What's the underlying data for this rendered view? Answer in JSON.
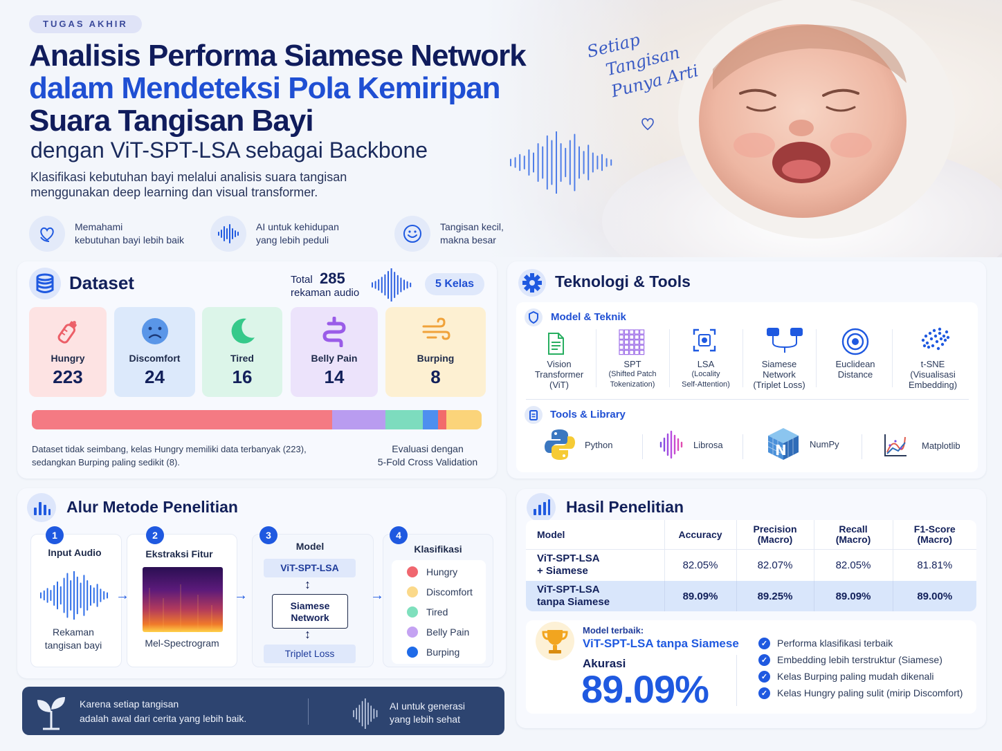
{
  "header": {
    "tag": "TUGAS AKHIR",
    "title_line1": "Analisis Performa Siamese Network",
    "title_line2": "dalam Mendeteksi Pola Kemiripan",
    "title_line3": "Suara Tangisan Bayi",
    "title_line4": "dengan ViT-SPT-LSA sebagai Backbone",
    "subtitle_line1": "Klasifikasi kebutuhan bayi melalui analisis suara tangisan",
    "subtitle_line2": "menggunakan deep learning dan visual transformer.",
    "handwritten_line1": "Setiap",
    "handwritten_line2": "Tangisan",
    "handwritten_line3": "Punya Arti"
  },
  "features": [
    {
      "icon": "heart-hand-icon",
      "line1": "Memahami",
      "line2": "kebutuhan bayi lebih baik"
    },
    {
      "icon": "soundwave-icon",
      "line1": "AI untuk kehidupan",
      "line2": "yang lebih peduli"
    },
    {
      "icon": "smile-icon",
      "line1": "Tangisan kecil,",
      "line2": "makna besar"
    }
  ],
  "dataset": {
    "title": "Dataset",
    "total_label": "Total",
    "total_value": "285",
    "total_unit": "rekaman audio",
    "classes_badge": "5 Kelas",
    "classes": [
      {
        "name": "Hungry",
        "value": "223",
        "count": 223,
        "bg": "#fde3e3",
        "color": "#f0727a",
        "icon": "bottle-icon"
      },
      {
        "name": "Discomfort",
        "value": "24",
        "count": 24,
        "bg": "#dce9fb",
        "color": "#5a96e8",
        "icon": "sad-face-icon"
      },
      {
        "name": "Tired",
        "value": "16",
        "count": 16,
        "bg": "#dcf5e9",
        "color": "#3ccf8e",
        "icon": "moon-icon"
      },
      {
        "name": "Belly Pain",
        "value": "14",
        "count": 14,
        "bg": "#ece3fb",
        "color": "#a071e8",
        "icon": "stomach-icon"
      },
      {
        "name": "Burping",
        "value": "8",
        "count": 8,
        "bg": "#fdf0d2",
        "color": "#f2a93b",
        "icon": "wind-icon"
      }
    ],
    "bar_colors": [
      "#f47a83",
      "#b99cf0",
      "#7ddcbe",
      "#4e8fef",
      "#f26b6b",
      "#fbd47a"
    ],
    "note_line1": "Dataset tidak seimbang, kelas Hungry memiliki data terbanyak (223),",
    "note_line2": "sedangkan Burping paling sedikit (8).",
    "eval_line1": "Evaluasi dengan",
    "eval_line2": "5-Fold Cross Validation"
  },
  "tech": {
    "title": "Teknologi & Tools",
    "model_section": "Model & Teknik",
    "models": [
      {
        "l1": "Vision",
        "l2": "Transformer",
        "l3": "(ViT)",
        "icon": "document-icon"
      },
      {
        "l1": "SPT",
        "l2": "(Shifted Patch",
        "l3": "Tokenization)",
        "icon": "grid-icon"
      },
      {
        "l1": "LSA",
        "l2": "(Locality",
        "l3": "Self-Attention)",
        "icon": "focus-icon"
      },
      {
        "l1": "Siamese",
        "l2": "Network",
        "l3": "(Triplet Loss)",
        "icon": "siamese-icon"
      },
      {
        "l1": "Euclidean",
        "l2": "Distance",
        "l3": "",
        "icon": "target-icon"
      },
      {
        "l1": "t-SNE",
        "l2": "(Visualisasi",
        "l3": "Embedding)",
        "icon": "scatter-icon"
      }
    ],
    "tools_section": "Tools & Library",
    "tools": [
      {
        "name": "Python",
        "icon": "python-icon"
      },
      {
        "name": "Librosa",
        "icon": "librosa-icon"
      },
      {
        "name": "NumPy",
        "icon": "numpy-icon"
      },
      {
        "name": "Matplotlib",
        "icon": "matplotlib-icon"
      }
    ]
  },
  "method": {
    "title": "Alur Metode Penelitian",
    "steps": [
      {
        "n": "1",
        "title": "Input Audio",
        "cap1": "Rekaman",
        "cap2": "tangisan bayi"
      },
      {
        "n": "2",
        "title": "Ekstraksi Fitur",
        "cap1": "Mel-Spectrogram",
        "cap2": ""
      },
      {
        "n": "3",
        "title": "Model",
        "box1": "ViT-SPT-LSA",
        "box2a": "Siamese",
        "box2b": "Network",
        "box3": "Triplet Loss"
      },
      {
        "n": "4",
        "title": "Klasifikasi"
      }
    ],
    "legend": [
      {
        "name": "Hungry",
        "color": "#f0676f"
      },
      {
        "name": "Discomfort",
        "color": "#fbd98a"
      },
      {
        "name": "Tired",
        "color": "#7fe0bd"
      },
      {
        "name": "Belly Pain",
        "color": "#c4a2f2"
      },
      {
        "name": "Burping",
        "color": "#1f6be8"
      }
    ]
  },
  "banner": {
    "left_line1": "Karena setiap tangisan",
    "left_line2": "adalah awal dari cerita yang lebih baik.",
    "right_line1": "AI untuk generasi",
    "right_line2": "yang lebih sehat"
  },
  "results": {
    "title": "Hasil Penelitian",
    "headers": [
      "Model",
      "Accuracy",
      "Precision",
      "Recall",
      "F1-Score"
    ],
    "headers_sub": [
      "",
      "",
      "(Macro)",
      "(Macro)",
      "(Macro)"
    ],
    "rows": [
      {
        "m1": "ViT-SPT-LSA",
        "m2": "+ Siamese",
        "acc": "82.05%",
        "prec": "82.07%",
        "rec": "82.05%",
        "f1": "81.81%"
      },
      {
        "m1": "ViT-SPT-LSA",
        "m2": "tanpa Siamese",
        "acc": "89.09%",
        "prec": "89.25%",
        "rec": "89.09%",
        "f1": "89.00%"
      }
    ],
    "best_label": "Model terbaik:",
    "best_model": "ViT-SPT-LSA tanpa Siamese",
    "acc_label": "Akurasi",
    "acc_value": "89.09%",
    "points": [
      "Performa klasifikasi terbaik",
      "Embedding lebih terstruktur (Siamese)",
      "Kelas Burping paling mudah dikenali",
      "Kelas Hungry paling sulit (mirip Discomfort)"
    ]
  }
}
